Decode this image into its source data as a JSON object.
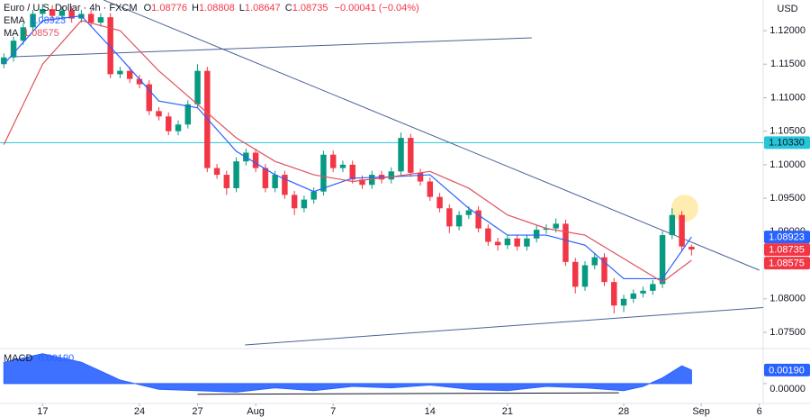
{
  "chart_data": {
    "type": "candlestick",
    "title": "Euro / U.S. Dollar · 4h · FXCM",
    "ohlc_labels": {
      "open": "O",
      "high": "H",
      "low": "L",
      "close": "C"
    },
    "last": {
      "open": 1.08776,
      "high": 1.08808,
      "low": 1.08647,
      "close": 1.08735,
      "change": "−0.00041 (−0.04%)"
    },
    "currency": "USD",
    "x": [
      -4,
      -3,
      -2,
      -1,
      0,
      1,
      2,
      3,
      4,
      5,
      6,
      7,
      8,
      9,
      10,
      11,
      12,
      13,
      14,
      15,
      16,
      17,
      18,
      19,
      20,
      21,
      22,
      23,
      24,
      25,
      26,
      27,
      28,
      29,
      30,
      31,
      32,
      33,
      34,
      35,
      36,
      37,
      38,
      39,
      40,
      41,
      42,
      43,
      44,
      45,
      46,
      47,
      48,
      49,
      50,
      51,
      52,
      53,
      54,
      55,
      56,
      57,
      58,
      59,
      60,
      61,
      62,
      63,
      64,
      65,
      66,
      67
    ],
    "open": [
      1.115,
      1.116,
      1.1185,
      1.1205,
      1.1225,
      1.1232,
      1.1222,
      1.123,
      1.1218,
      1.1225,
      1.1212,
      1.122,
      1.1135,
      1.114,
      1.1128,
      1.112,
      1.108,
      1.1072,
      1.105,
      1.106,
      1.109,
      1.114,
      1.0995,
      1.0985,
      1.0965,
      1.1005,
      1.1018,
      1.0995,
      1.0965,
      1.0985,
      1.0955,
      1.0935,
      1.0948,
      1.096,
      1.1015,
      1.0995,
      1.1,
      1.0978,
      1.097,
      1.0985,
      1.0978,
      1.099,
      1.104,
      1.0988,
      1.0975,
      1.0952,
      1.0935,
      1.0908,
      1.0925,
      1.0932,
      1.0905,
      1.0885,
      1.088,
      1.089,
      1.0878,
      1.089,
      1.0903,
      1.0905,
      1.0912,
      1.0855,
      1.0818,
      1.085,
      1.0862,
      1.0825,
      1.079,
      1.08,
      1.0808,
      1.0812,
      1.0822,
      1.0895,
      1.0925,
      1.08776
    ],
    "high": [
      1.1166,
      1.1191,
      1.1211,
      1.1231,
      1.124,
      1.1238,
      1.1236,
      1.1236,
      1.1231,
      1.1231,
      1.1226,
      1.1226,
      1.1146,
      1.1146,
      1.1134,
      1.1126,
      1.1086,
      1.1078,
      1.1066,
      1.1096,
      1.115,
      1.1146,
      1.1001,
      1.0991,
      1.1011,
      1.1024,
      1.1024,
      1.1001,
      1.0991,
      1.0991,
      1.0961,
      1.0954,
      1.0966,
      1.1021,
      1.1021,
      1.1006,
      1.1006,
      1.0984,
      1.0991,
      1.0991,
      1.0996,
      1.1048,
      1.1046,
      1.0994,
      1.0981,
      1.0958,
      1.0941,
      1.0931,
      1.0938,
      1.0938,
      1.0911,
      1.0891,
      1.0896,
      1.0896,
      1.0896,
      1.0909,
      1.0911,
      1.092,
      1.0918,
      1.0861,
      1.0856,
      1.0868,
      1.0868,
      1.0831,
      1.0806,
      1.0814,
      1.0818,
      1.0828,
      1.0901,
      1.0935,
      1.0931,
      1.08808
    ],
    "low": [
      1.1144,
      1.1154,
      1.1179,
      1.1199,
      1.1219,
      1.1216,
      1.1216,
      1.1212,
      1.1212,
      1.1206,
      1.1206,
      1.1129,
      1.1129,
      1.1122,
      1.1114,
      1.1074,
      1.1066,
      1.1044,
      1.1044,
      1.1054,
      1.1084,
      1.0989,
      1.0979,
      1.0955,
      1.0959,
      1.0999,
      1.0989,
      1.0959,
      1.0959,
      1.0949,
      1.0925,
      1.0929,
      1.0942,
      1.0954,
      1.0989,
      1.0989,
      1.0972,
      1.0964,
      1.0964,
      1.0972,
      1.0972,
      1.0984,
      1.0982,
      1.0969,
      1.0946,
      1.0929,
      1.0898,
      1.0902,
      1.0919,
      1.0899,
      1.0879,
      1.0872,
      1.0874,
      1.0872,
      1.0872,
      1.0884,
      1.0897,
      1.0899,
      1.0849,
      1.0808,
      1.0812,
      1.0844,
      1.0819,
      1.0778,
      1.078,
      1.0794,
      1.0802,
      1.0806,
      1.0816,
      1.0889,
      1.0872,
      1.08647
    ],
    "close": [
      1.116,
      1.1185,
      1.1205,
      1.1225,
      1.1232,
      1.1222,
      1.123,
      1.1218,
      1.1225,
      1.1212,
      1.122,
      1.1135,
      1.114,
      1.1128,
      1.112,
      1.108,
      1.1072,
      1.105,
      1.106,
      1.109,
      1.114,
      1.0995,
      1.0985,
      1.0965,
      1.1005,
      1.1018,
      1.0995,
      1.0965,
      1.0985,
      1.0955,
      1.0935,
      1.0948,
      1.096,
      1.1015,
      1.0995,
      1.1,
      1.0978,
      1.097,
      1.0985,
      1.0978,
      1.099,
      1.104,
      1.0988,
      1.0975,
      1.0952,
      1.0935,
      1.0908,
      1.0925,
      1.0932,
      1.0905,
      1.0885,
      1.088,
      1.089,
      1.0878,
      1.089,
      1.0903,
      1.0905,
      1.0912,
      1.0855,
      1.0818,
      1.085,
      1.0862,
      1.0825,
      1.079,
      1.08,
      1.0808,
      1.0812,
      1.0822,
      1.0895,
      1.0925,
      1.0878,
      1.08735
    ],
    "up_color": "#089981",
    "down_color": "#f23645",
    "xlim": [
      -4.4,
      74.4
    ],
    "xticks": [
      {
        "value": 0,
        "label": "17"
      },
      {
        "value": 10,
        "label": "24"
      },
      {
        "value": 16,
        "label": "27"
      },
      {
        "value": 22,
        "label": "Aug"
      },
      {
        "value": 30,
        "label": "7"
      },
      {
        "value": 40,
        "label": "14"
      },
      {
        "value": 48,
        "label": "21"
      },
      {
        "value": 60,
        "label": "28"
      },
      {
        "value": 68,
        "label": "Sep"
      },
      {
        "value": 74,
        "label": "6"
      }
    ],
    "ylim": [
      1.07285,
      1.12457
    ],
    "yticks": [
      {
        "value": 1.12,
        "label": "1.12000"
      },
      {
        "value": 1.115,
        "label": "1.11500"
      },
      {
        "value": 1.11,
        "label": "1.11000"
      },
      {
        "value": 1.105,
        "label": "1.10500"
      },
      {
        "value": 1.1,
        "label": "1.10000"
      },
      {
        "value": 1.095,
        "label": "1.09500"
      },
      {
        "value": 1.09,
        "label": "1.09000"
      },
      {
        "value": 1.08,
        "label": "1.08000"
      },
      {
        "value": 1.075,
        "label": "1.07500"
      }
    ],
    "series": [
      {
        "name": "EMA",
        "color": "#2962ff",
        "value": 1.08923,
        "x": [
          -4,
          0,
          4,
          8,
          12,
          16,
          20,
          24,
          28,
          32,
          36,
          40,
          44,
          48,
          52,
          56,
          60,
          64,
          67
        ],
        "values": [
          1.115,
          1.1215,
          1.1222,
          1.116,
          1.1095,
          1.1085,
          1.102,
          1.0985,
          1.096,
          1.098,
          1.0982,
          1.0985,
          1.0935,
          1.0895,
          1.0895,
          1.088,
          1.083,
          1.083,
          1.08923
        ]
      },
      {
        "name": "MA",
        "color": "#e0525e",
        "value": 1.08575,
        "x": [
          -4,
          0,
          4,
          8,
          12,
          16,
          20,
          24,
          28,
          32,
          36,
          40,
          44,
          48,
          52,
          56,
          60,
          64,
          67
        ],
        "values": [
          1.103,
          1.115,
          1.1215,
          1.12,
          1.114,
          1.109,
          1.104,
          1.1005,
          1.0985,
          1.0975,
          1.0982,
          1.099,
          1.0965,
          1.0925,
          1.0905,
          1.0895,
          1.086,
          1.0825,
          1.08575
        ]
      }
    ],
    "level": {
      "value": 1.1033,
      "label": "1.10330",
      "color": "#26c6da"
    },
    "trendlines": [
      {
        "x": [
          6.3,
          74.0
        ],
        "y": [
          1.12457,
          1.08427
        ]
      },
      {
        "x": [
          -3,
          50.5
        ],
        "y": [
          1.11611,
          1.11893
        ]
      },
      {
        "x": [
          20.9,
          74.4
        ],
        "y": [
          1.07312,
          1.0787
        ]
      }
    ],
    "trendline_color": "#4a6396",
    "highlight": {
      "x": 66.3,
      "y": 1.0935,
      "color": "#ffd54f"
    },
    "macd": {
      "name": "MACD",
      "value": {
        "value": 0.0019,
        "label": "0.00190"
      },
      "color": "#2962ff",
      "x": [
        -4,
        0,
        4,
        8,
        12,
        16,
        20,
        24,
        28,
        32,
        36,
        40,
        44,
        48,
        52,
        56,
        60,
        62,
        64,
        66,
        67
      ],
      "values": [
        0.003,
        0.0042,
        0.003,
        0.0005,
        -0.0008,
        -0.001,
        -0.0012,
        -0.0006,
        -0.001,
        -0.0004,
        -0.0006,
        -0.0002,
        -0.0008,
        -0.001,
        -0.0004,
        -0.0006,
        -0.001,
        -0.0004,
        0.0008,
        0.0025,
        0.0019
      ],
      "ylim": [
        -0.0028,
        0.0048
      ],
      "yticks": [
        {
          "value": 0,
          "label": "0.00000"
        }
      ],
      "divergence": {
        "x": [
          16,
          59.5
        ],
        "y": [
          -0.0015,
          -0.0013
        ]
      }
    }
  }
}
